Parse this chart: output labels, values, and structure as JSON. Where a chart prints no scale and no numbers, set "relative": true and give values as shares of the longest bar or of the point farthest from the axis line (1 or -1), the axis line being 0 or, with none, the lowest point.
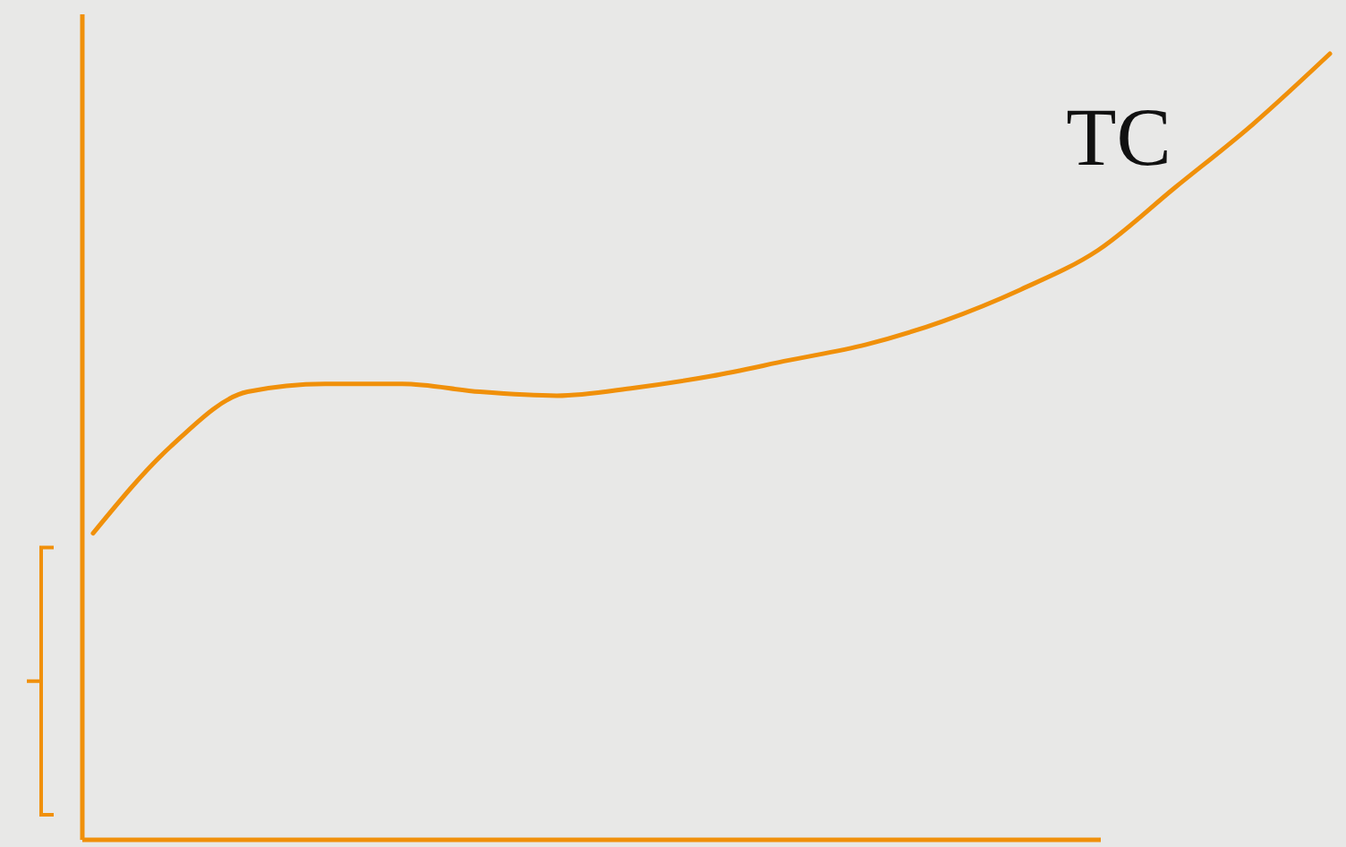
{
  "chart_data": {
    "type": "line",
    "relative": true,
    "categories": [
      null,
      null,
      null,
      null,
      null,
      null,
      null,
      null,
      null,
      null,
      null,
      null,
      null,
      null,
      null,
      null,
      null
    ],
    "series": [
      {
        "name": "TC",
        "color": "#f0900a",
        "values": [
          0.39,
          0.5,
          0.57,
          0.58,
          0.58,
          0.57,
          0.565,
          0.575,
          0.59,
          0.61,
          0.63,
          0.66,
          0.7,
          0.75,
          0.83,
          0.91,
          1
        ]
      }
    ]
  }
}
